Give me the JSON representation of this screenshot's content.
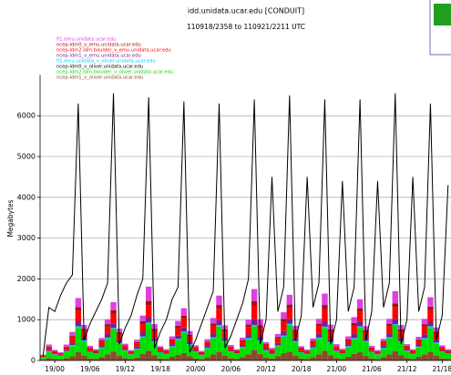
{
  "chart_data": {
    "type": "bar",
    "stacked": true,
    "title": "idd.unidata.ucar.edu [CONDUIT]",
    "subtitle": "110918/2358 to 110921/2211 UTC",
    "y_label": "Megabytes",
    "ylim": [
      0,
      7000
    ],
    "yticks": [
      0,
      1000,
      2000,
      3000,
      4000,
      5000,
      6000
    ],
    "grid": true,
    "categories": [
      null,
      null,
      "19/00",
      null,
      null,
      null,
      null,
      null,
      "19/06",
      null,
      null,
      null,
      null,
      null,
      "19/12",
      null,
      null,
      null,
      null,
      null,
      "19/18",
      null,
      null,
      null,
      null,
      null,
      "20/00",
      null,
      null,
      null,
      null,
      null,
      "20/06",
      null,
      null,
      null,
      null,
      null,
      "20/12",
      null,
      null,
      null,
      null,
      null,
      "20/18",
      null,
      null,
      null,
      null,
      null,
      "21/00",
      null,
      null,
      null,
      null,
      null,
      "21/06",
      null,
      null,
      null,
      null,
      null,
      "21/12",
      null,
      null,
      null,
      null,
      null,
      "21/18",
      null
    ],
    "series": [
      {
        "name": "fl1.emu.unidata.ucar.edu",
        "color": "#e040e0",
        "values": [
          20,
          50,
          30,
          20,
          50,
          100,
          220,
          100,
          40,
          30,
          60,
          120,
          200,
          90,
          40,
          30,
          60,
          140,
          350,
          120,
          40,
          30,
          70,
          120,
          180,
          90,
          40,
          30,
          60,
          130,
          230,
          100,
          40,
          30,
          60,
          120,
          300,
          150,
          50,
          40,
          80,
          160,
          240,
          100,
          40,
          30,
          60,
          120,
          280,
          120,
          50,
          30,
          70,
          140,
          220,
          100,
          40,
          30,
          60,
          120,
          300,
          110,
          40,
          30,
          70,
          130,
          230,
          100,
          40,
          30
        ]
      },
      {
        "name": "ncep-ldm0_v_emu.unidata.ucar.edu",
        "color": "#a01010",
        "values": [
          10,
          20,
          20,
          10,
          20,
          40,
          90,
          50,
          20,
          15,
          30,
          60,
          80,
          50,
          20,
          15,
          30,
          70,
          100,
          60,
          20,
          15,
          30,
          60,
          70,
          40,
          20,
          15,
          30,
          60,
          90,
          50,
          20,
          15,
          30,
          60,
          110,
          70,
          30,
          20,
          40,
          80,
          90,
          50,
          20,
          15,
          30,
          60,
          100,
          60,
          20,
          15,
          30,
          70,
          80,
          50,
          20,
          15,
          30,
          60,
          90,
          50,
          20,
          15,
          30,
          60,
          90,
          50,
          20,
          15
        ]
      },
      {
        "name": "ncep-ldm2.ldm.boulder_v_emu.unidata.ucar.edu",
        "color": "#ff0000",
        "values": [
          20,
          60,
          40,
          30,
          60,
          120,
          260,
          150,
          60,
          40,
          90,
          180,
          240,
          140,
          70,
          40,
          80,
          200,
          300,
          160,
          60,
          50,
          90,
          170,
          220,
          130,
          60,
          40,
          80,
          190,
          280,
          150,
          70,
          40,
          90,
          180,
          320,
          200,
          80,
          60,
          100,
          220,
          260,
          150,
          60,
          40,
          80,
          190,
          300,
          170,
          70,
          50,
          90,
          200,
          250,
          140,
          60,
          40,
          80,
          180,
          290,
          160,
          70,
          50,
          90,
          190,
          270,
          150,
          60,
          40
        ]
      },
      {
        "name": "ncep-ldm1_v_emu.unidata.ucar.edu",
        "color": "#7a1f8a",
        "values": [
          10,
          30,
          20,
          20,
          30,
          60,
          120,
          80,
          30,
          20,
          50,
          90,
          110,
          70,
          30,
          20,
          50,
          100,
          130,
          80,
          30,
          20,
          50,
          90,
          100,
          60,
          30,
          20,
          40,
          90,
          120,
          80,
          30,
          20,
          50,
          90,
          150,
          100,
          40,
          30,
          60,
          110,
          120,
          80,
          30,
          20,
          50,
          90,
          130,
          80,
          30,
          20,
          50,
          100,
          110,
          70,
          30,
          20,
          50,
          90,
          130,
          80,
          30,
          20,
          50,
          90,
          120,
          70,
          30,
          20
        ]
      },
      {
        "name": "fl1.emu.unidata_v_oliver.unidata.ucar.edu",
        "color": "#00c8ff",
        "values": [
          10,
          20,
          10,
          10,
          20,
          30,
          40,
          20,
          10,
          10,
          20,
          30,
          30,
          20,
          10,
          10,
          20,
          30,
          40,
          20,
          10,
          10,
          20,
          30,
          30,
          20,
          10,
          10,
          20,
          30,
          40,
          20,
          10,
          10,
          20,
          30,
          30,
          20,
          10,
          10,
          20,
          30,
          40,
          20,
          10,
          10,
          20,
          30,
          30,
          20,
          10,
          10,
          20,
          30,
          40,
          20,
          10,
          10,
          20,
          30,
          30,
          20,
          10,
          10,
          20,
          30,
          40,
          20,
          10,
          10
        ]
      },
      {
        "name": "ncep-ldm0_v_oliver.unidata.ucar.edu",
        "color": "#000000",
        "type": "line",
        "values": [
          100,
          1300,
          1200,
          1600,
          1900,
          2100,
          6300,
          500,
          900,
          1200,
          1500,
          1900,
          6550,
          400,
          800,
          1100,
          1600,
          2000,
          6450,
          300,
          700,
          1000,
          1500,
          1800,
          6350,
          200,
          500,
          900,
          1300,
          1700,
          6300,
          300,
          600,
          1000,
          1400,
          2000,
          6400,
          400,
          1000,
          4500,
          1200,
          1800,
          6500,
          500,
          1100,
          4500,
          1300,
          1900,
          6400,
          400,
          1000,
          4400,
          1200,
          1800,
          6400,
          500,
          1200,
          4400,
          1300,
          1900,
          6550,
          400,
          1000,
          4500,
          1200,
          1800,
          6300,
          500,
          1100,
          4300
        ]
      },
      {
        "name": "ncep-ldm2.ldm.boulder_v_oliver.unidata.ucar.edu",
        "color": "#00e000",
        "values": [
          50,
          150,
          100,
          80,
          150,
          250,
          600,
          350,
          150,
          120,
          220,
          380,
          550,
          300,
          180,
          100,
          200,
          400,
          650,
          320,
          140,
          110,
          240,
          360,
          500,
          280,
          160,
          90,
          210,
          390,
          620,
          340,
          150,
          120,
          230,
          370,
          580,
          310,
          170,
          100,
          250,
          400,
          640,
          330,
          140,
          110,
          220,
          380,
          560,
          300,
          160,
          120,
          240,
          360,
          600,
          350,
          150,
          100,
          210,
          390,
          630,
          320,
          170,
          110,
          230,
          370,
          590,
          300,
          160,
          120
        ]
      },
      {
        "name": "ncep-ldm1_v_oliver.unidata.ucar.edu",
        "color": "#8b4a2b",
        "values": [
          20,
          60,
          40,
          30,
          60,
          100,
          200,
          120,
          50,
          40,
          80,
          150,
          220,
          110,
          60,
          40,
          70,
          160,
          240,
          130,
          50,
          40,
          90,
          140,
          180,
          100,
          50,
          30,
          80,
          150,
          210,
          120,
          60,
          40,
          80,
          150,
          260,
          160,
          70,
          50,
          100,
          180,
          220,
          120,
          50,
          40,
          80,
          150,
          240,
          130,
          60,
          40,
          90,
          160,
          200,
          110,
          50,
          40,
          80,
          150,
          230,
          130,
          60,
          40,
          90,
          150,
          210,
          120,
          50,
          40
        ]
      }
    ]
  }
}
